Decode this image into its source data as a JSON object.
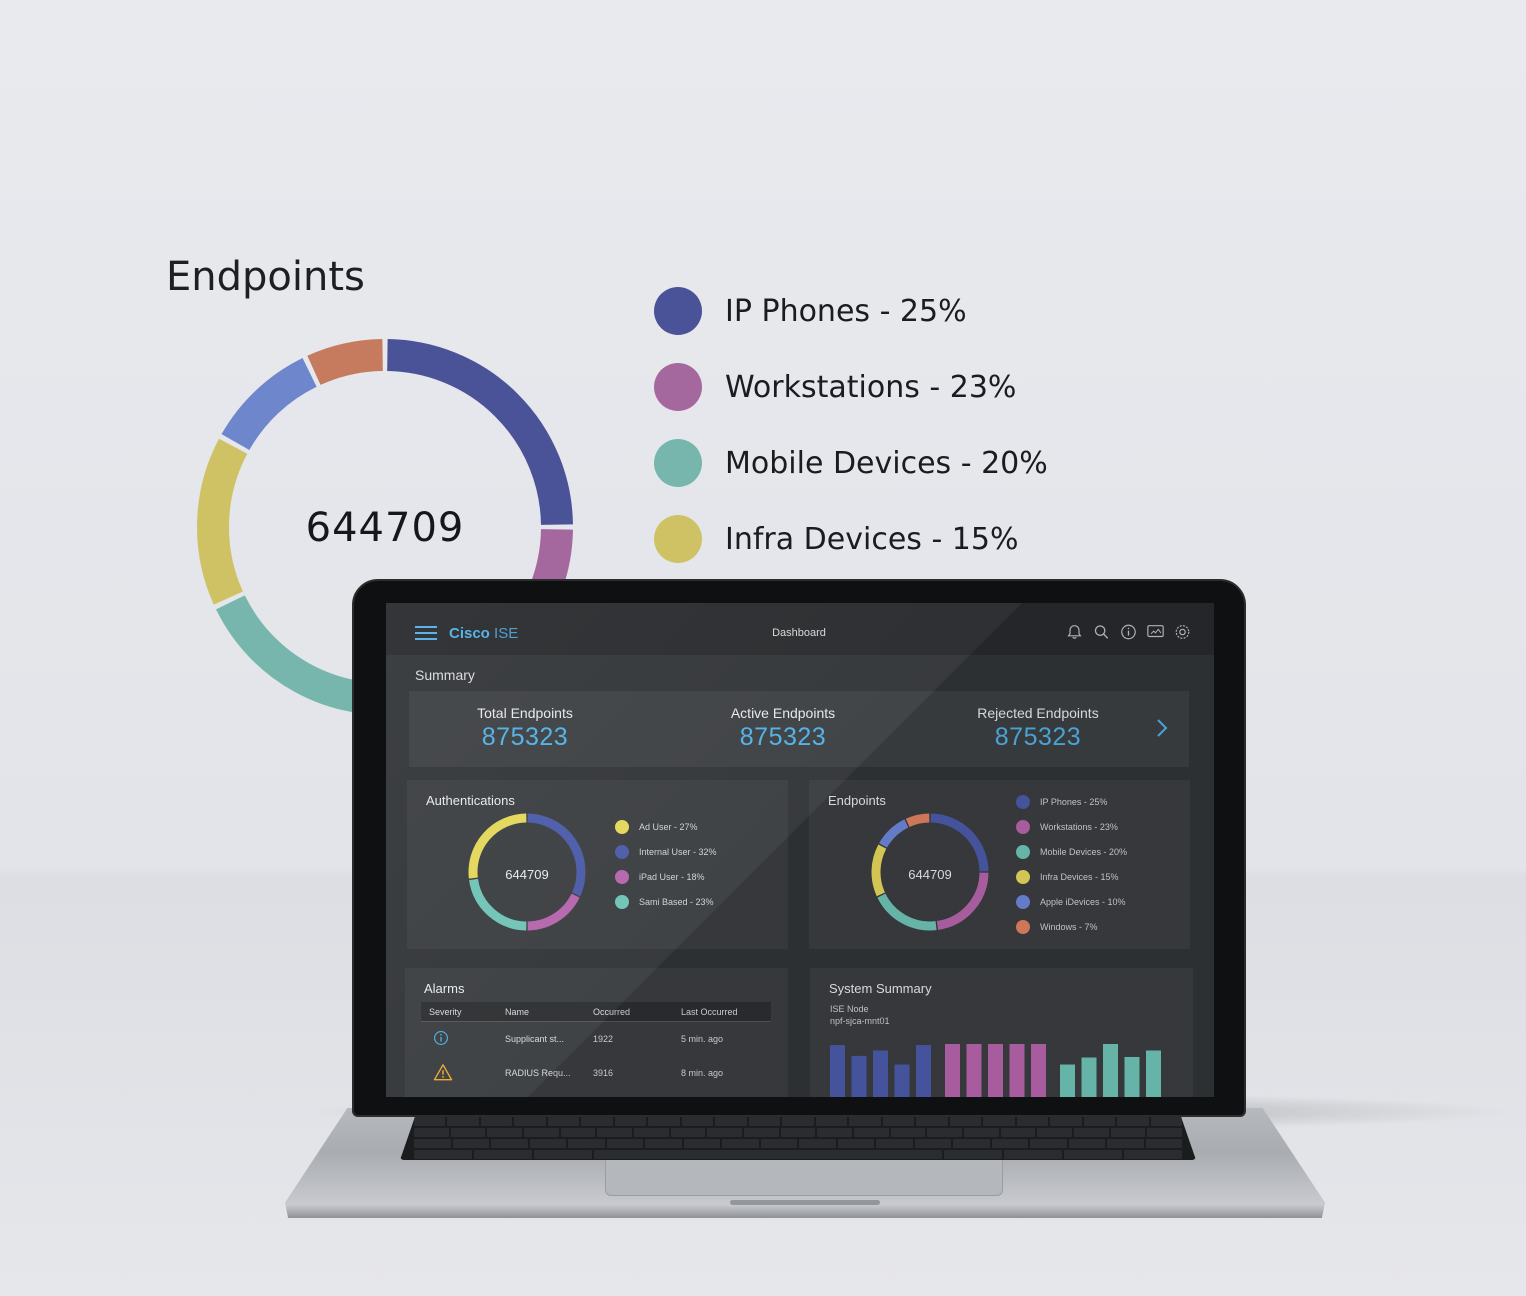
{
  "hero": {
    "title": "Endpoints",
    "center_value": "644709",
    "legend": [
      {
        "label": "IP Phones - 25%",
        "color": "#4a5398"
      },
      {
        "label": "Workstations - 23%",
        "color": "#a5689e"
      },
      {
        "label": "Mobile Devices - 20%",
        "color": "#76b6ad"
      },
      {
        "label": "Infra Devices - 15%",
        "color": "#cfc265"
      }
    ],
    "segments_pct": [
      25,
      23,
      20,
      15,
      10,
      7
    ],
    "segment_colors": [
      "#4a5398",
      "#a5689e",
      "#76b6ad",
      "#cfc265",
      "#6d86cc",
      "#c67b5e"
    ]
  },
  "topbar": {
    "brand_bold": "Cisco",
    "brand_light": "ISE",
    "title": "Dashboard",
    "icons": [
      "bell-icon",
      "search-icon",
      "info-icon",
      "monitor-icon",
      "gear-icon"
    ]
  },
  "summary": {
    "label": "Summary",
    "stats": [
      {
        "title": "Total Endpoints",
        "value": "875323"
      },
      {
        "title": "Active Endpoints",
        "value": "875323"
      },
      {
        "title": "Rejected Endpoints",
        "value": "875323"
      }
    ]
  },
  "authentications": {
    "title": "Authentications",
    "center_value": "644709",
    "legend": [
      {
        "label": "Ad User - 27%",
        "color": "#e4d65a"
      },
      {
        "label": "Internal User - 32%",
        "color": "#4a5aa8"
      },
      {
        "label": "iPad User - 18%",
        "color": "#b464aa"
      },
      {
        "label": "Sami Based - 23%",
        "color": "#6fc3b5"
      }
    ],
    "segments_pct": [
      32,
      18,
      23,
      27
    ],
    "segment_colors": [
      "#4a5aa8",
      "#b464aa",
      "#6fc3b5",
      "#e4d65a"
    ]
  },
  "endpoints": {
    "title": "Endpoints",
    "center_value": "644709",
    "legend": [
      {
        "label": "IP Phones - 25%",
        "color": "#4a5aa8"
      },
      {
        "label": "Workstations - 23%",
        "color": "#b464aa"
      },
      {
        "label": "Mobile Devices - 20%",
        "color": "#6fc3b5"
      },
      {
        "label": "Infra Devices - 15%",
        "color": "#e4d65a"
      },
      {
        "label": "Apple iDevices - 10%",
        "color": "#6d86d8"
      },
      {
        "label": "Windows - 7%",
        "color": "#e0805f"
      }
    ],
    "segments_pct": [
      25,
      23,
      20,
      15,
      10,
      7
    ],
    "segment_colors": [
      "#4a5aa8",
      "#b464aa",
      "#6fc3b5",
      "#e4d65a",
      "#6d86d8",
      "#e0805f"
    ]
  },
  "alarms": {
    "title": "Alarms",
    "columns": [
      "Severity",
      "Name",
      "Occurred",
      "Last Occurred"
    ],
    "rows": [
      {
        "severity_icon": "info-icon",
        "name": "Supplicant st...",
        "occurred": "1922",
        "last": "5 min. ago"
      },
      {
        "severity_icon": "warning-icon",
        "name": "RADIUS Requ...",
        "occurred": "3916",
        "last": "8 min. ago"
      }
    ]
  },
  "system_summary": {
    "title": "System Summary",
    "node_label": "ISE Node",
    "node_name": "npf-sjca-mnt01",
    "bar_groups": [
      {
        "color": "#4a5aa8",
        "values": [
          0.98,
          0.78,
          0.88,
          0.62,
          0.98
        ]
      },
      {
        "color": "#b464aa",
        "values": [
          1.0,
          1.0,
          1.0,
          1.0,
          1.0
        ]
      },
      {
        "color": "#6fc3b5",
        "values": [
          0.62,
          0.75,
          1.0,
          0.76,
          0.88
        ]
      }
    ]
  }
}
